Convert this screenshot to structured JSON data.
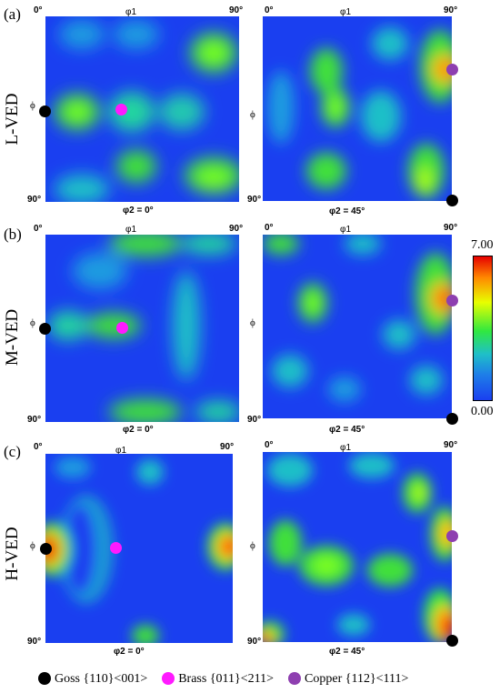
{
  "panels": [
    {
      "label": "(a)",
      "row": "L-VED"
    },
    {
      "label": "(b)",
      "row": "M-VED"
    },
    {
      "label": "(c)",
      "row": "H-VED"
    }
  ],
  "axes": {
    "left_origin": "0°",
    "right_end": "90°",
    "phi1": "φ1",
    "phi": "ϕ",
    "bottom": "90°"
  },
  "captions": {
    "left": "φ2 = 0°",
    "right": "φ2 = 45°"
  },
  "colorbar": {
    "max": "7.00",
    "min": "0.00"
  },
  "legend": [
    {
      "name": "Goss {110}<001>",
      "color": "#000000"
    },
    {
      "name": "Brass {011}<211>",
      "color": "#ff1aff"
    },
    {
      "name": "Copper {112}<111>",
      "color": "#8e3fb0"
    }
  ]
}
